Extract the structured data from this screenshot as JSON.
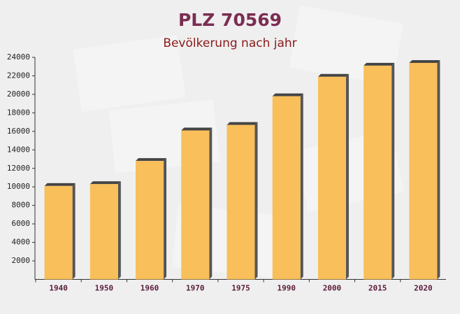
{
  "chart_data": {
    "type": "bar",
    "title": "PLZ 70569",
    "subtitle": "Bevölkerung nach jahr",
    "categories": [
      "1940",
      "1950",
      "1960",
      "1970",
      "1975",
      "1990",
      "2000",
      "2015",
      "2020"
    ],
    "values": [
      10100,
      10300,
      12800,
      16100,
      16700,
      19800,
      21900,
      23100,
      23400
    ],
    "color": "#f8bf5a",
    "ylim": [
      0,
      24000
    ],
    "yticks": [
      2000,
      4000,
      6000,
      8000,
      10000,
      12000,
      14000,
      16000,
      18000,
      20000,
      22000,
      24000
    ]
  }
}
